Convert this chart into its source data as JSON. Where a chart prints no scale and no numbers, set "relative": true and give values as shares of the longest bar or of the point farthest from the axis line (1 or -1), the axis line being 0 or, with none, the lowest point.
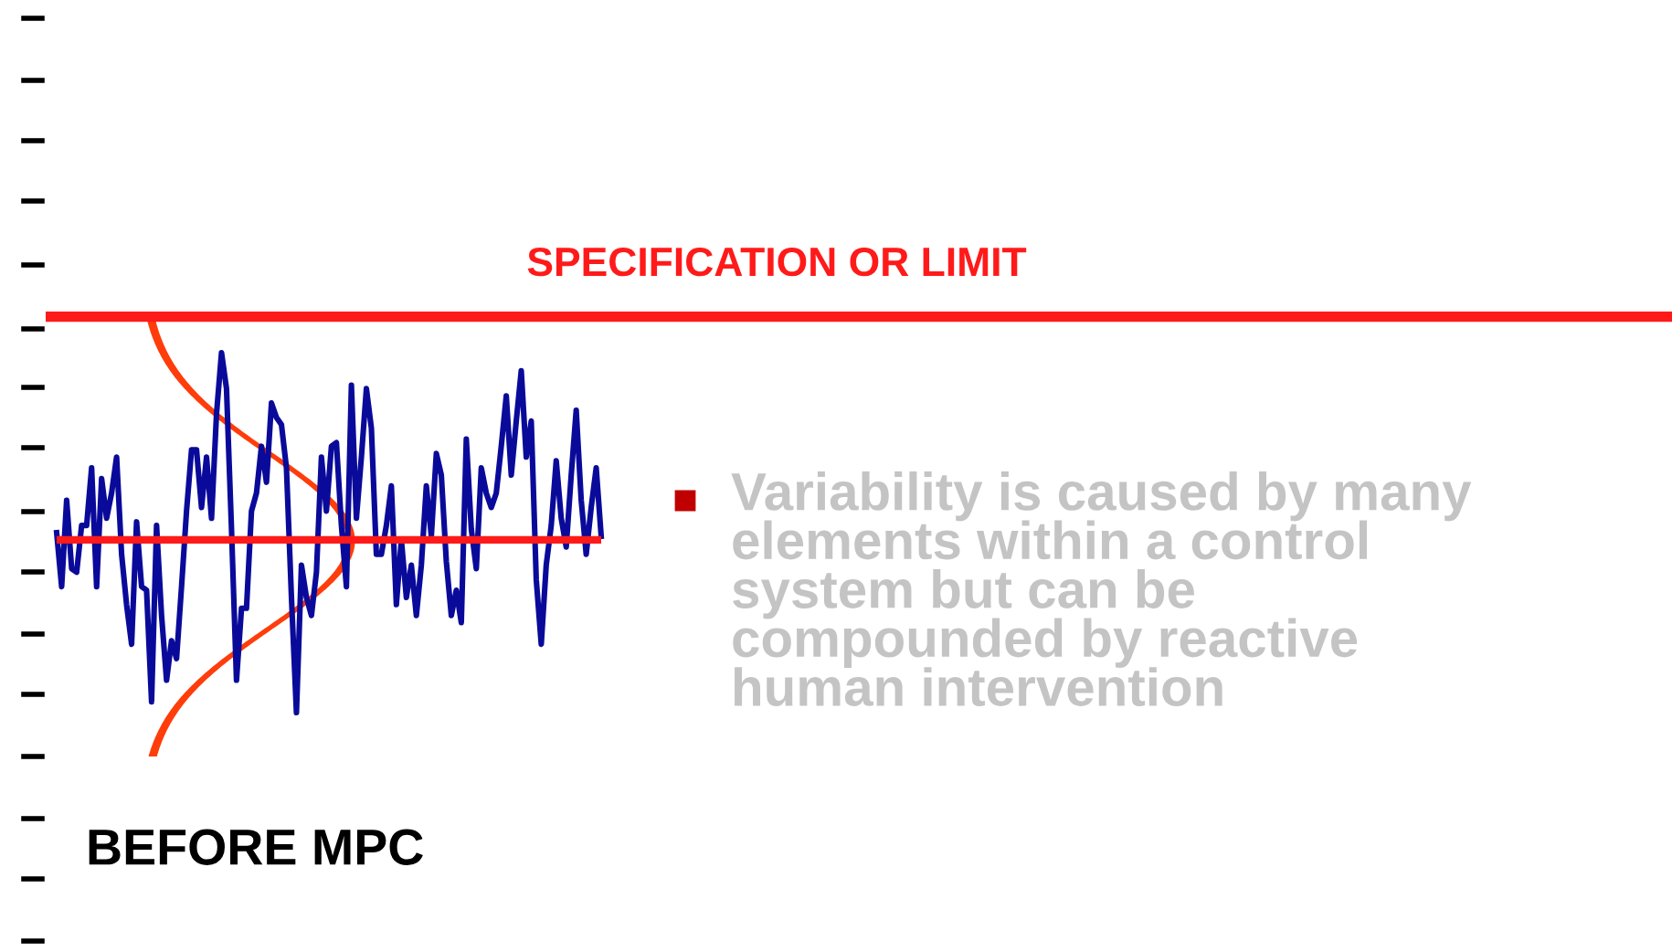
{
  "chart_data": {
    "type": "line",
    "relative": true,
    "title": "BEFORE MPC",
    "categories": [
      null,
      null,
      null,
      null,
      null,
      null,
      null,
      null,
      null,
      null,
      null,
      null,
      null,
      null,
      null,
      null,
      null,
      null,
      null,
      null,
      null,
      null,
      null,
      null,
      null,
      null,
      null,
      null,
      null,
      null,
      null,
      null,
      null,
      null,
      null,
      null,
      null,
      null,
      null,
      null,
      null,
      null,
      null,
      null,
      null,
      null,
      null,
      null,
      null,
      null,
      null,
      null,
      null,
      null,
      null,
      null,
      null,
      null,
      null,
      null,
      null,
      null,
      null,
      null,
      null,
      null,
      null,
      null,
      null,
      null,
      null,
      null,
      null,
      null,
      null,
      null,
      null,
      null,
      null,
      null,
      null,
      null,
      null,
      null,
      null,
      null,
      null,
      null,
      null,
      null,
      null,
      null,
      null,
      null,
      null,
      null,
      null,
      null,
      null,
      null,
      null,
      null,
      null,
      null,
      null,
      null,
      null,
      null,
      null,
      null
    ],
    "series": [
      {
        "color": "#0a0a9a",
        "values": [
          0.5,
          0.35,
          0.59,
          0.4,
          0.39,
          0.52,
          0.52,
          0.68,
          0.35,
          0.65,
          0.54,
          0.61,
          0.71,
          0.44,
          0.3,
          0.19,
          0.53,
          0.35,
          0.34,
          0.03,
          0.52,
          0.27,
          0.09,
          0.2,
          0.15,
          0.35,
          0.56,
          0.73,
          0.73,
          0.57,
          0.71,
          0.54,
          0.83,
          1.0,
          0.9,
          0.51,
          0.09,
          0.29,
          0.29,
          0.56,
          0.61,
          0.74,
          0.64,
          0.86,
          0.82,
          0.8,
          0.68,
          0.32,
          0,
          0.41,
          0.32,
          0.27,
          0.39,
          0.71,
          0.56,
          0.74,
          0.75,
          0.52,
          0.35,
          0.91,
          0.54,
          0.71,
          0.9,
          0.79,
          0.44,
          0.44,
          0.52,
          0.63,
          0.3,
          0.48,
          0.32,
          0.41,
          0.27,
          0.41,
          0.63,
          0.49,
          0.72,
          0.66,
          0.42,
          0.27,
          0.34,
          0.25,
          0.76,
          0.51,
          0.4,
          0.68,
          0.61,
          0.57,
          0.61,
          0.74,
          0.88,
          0.66,
          0.81,
          0.95,
          0.71,
          0.81,
          0.37,
          0.19,
          0.41,
          0.52,
          0.7,
          0.54,
          0.46,
          0.66,
          0.84,
          0.59,
          0.44,
          0.57,
          0.68,
          0.49
        ]
      }
    ],
    "ref_lines": [
      {
        "axis": "y",
        "value": 1.1,
        "label": "SPECIFICATION OR LIMIT",
        "color": "#ff1a1a"
      },
      {
        "axis": "y",
        "value": 0.48,
        "color": "#ff1a1a"
      }
    ],
    "annotations": [
      "Variability is caused by many\nelements within a control\nsystem but can be\ncompounded by reactive\nhuman intervention"
    ],
    "marker": "none",
    "line_style": "solid"
  }
}
